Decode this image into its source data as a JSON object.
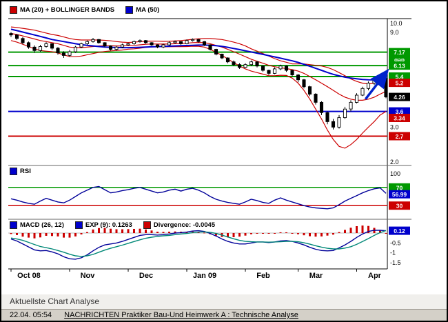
{
  "legends": {
    "main": [
      {
        "label": "MA (20) + BOLLINGER BANDS",
        "color": "#cc0000"
      },
      {
        "label": "MA (50)",
        "color": "#0000cc"
      }
    ],
    "rsi": [
      {
        "label": "RSI",
        "color": "#0000cc"
      }
    ],
    "macd": [
      {
        "label": "MACD (26, 12)",
        "color": "#0000cc"
      },
      {
        "label": "EXP (9): 0.1263",
        "color": "#0000cc"
      },
      {
        "label": "Divergence: -0.0045",
        "color": "#cc0000"
      }
    ]
  },
  "analysis": {
    "title": "Aktuellste Chart Analyse",
    "timestamp": "22.04. 05:54",
    "link": "NACHRICHTEN Praktiker Bau-Und Heimwerk A : Technische Analyse"
  },
  "chart_data": {
    "type": "candlestick",
    "x_axis": {
      "months": [
        {
          "label": "Oct 08",
          "index": 0
        },
        {
          "label": "Nov",
          "index": 10
        },
        {
          "label": "Dec",
          "index": 20
        },
        {
          "label": "Jan 09",
          "index": 30
        },
        {
          "label": "Feb",
          "index": 40
        },
        {
          "label": "Mar",
          "index": 49
        },
        {
          "label": "Apr",
          "index": 59
        }
      ]
    },
    "panels": {
      "price": {
        "scale": "log",
        "ylim": [
          2.0,
          10.35
        ],
        "ticks": [
          {
            "label": "10.0",
            "value": 10.0
          },
          {
            "label": "9.0",
            "value": 9.0
          },
          {
            "label": "3.0",
            "value": 3.0
          },
          {
            "label": "2.0",
            "value": 2.0
          }
        ],
        "levels": [
          {
            "value": 7.17,
            "color": "#009900"
          },
          {
            "value": 6.13,
            "color": "#009900"
          },
          {
            "value": 5.4,
            "color": "#009900"
          },
          {
            "value": 3.6,
            "color": "#0000cc"
          },
          {
            "value": 2.7,
            "color": "#cc0000"
          }
        ],
        "markers": [
          {
            "text": "7.17",
            "value": 7.17,
            "bg": "#009900"
          },
          {
            "text": "gap",
            "value": 6.6,
            "bg": "#009900"
          },
          {
            "text": "6.13",
            "value": 6.13,
            "bg": "#009900"
          },
          {
            "text": "5.4",
            "value": 5.4,
            "bg": "#009900"
          },
          {
            "text": "5.2",
            "value": 5.02,
            "bg": "#cc0000"
          },
          {
            "text": "4.26",
            "value": 4.26,
            "bg": "#000000"
          },
          {
            "text": "3.6",
            "value": 3.6,
            "bg": "#0000cc"
          },
          {
            "text": "3.34",
            "value": 3.34,
            "bg": "#cc0000"
          },
          {
            "text": "2.7",
            "value": 2.7,
            "bg": "#cc0000"
          }
        ],
        "trend_arrow": {
          "from_index": 60.5,
          "from_price": 4.15,
          "to_index": 64.0,
          "to_price": 5.65,
          "color": "#0022cc"
        },
        "candles": [
          [
            8.9,
            9.05,
            8.55,
            8.75
          ],
          [
            8.75,
            8.85,
            8.25,
            8.4
          ],
          [
            8.4,
            8.55,
            7.85,
            8.0
          ],
          [
            8.0,
            8.1,
            7.45,
            7.6
          ],
          [
            7.6,
            7.75,
            7.1,
            7.3
          ],
          [
            7.3,
            7.8,
            7.2,
            7.65
          ],
          [
            7.65,
            8.05,
            7.55,
            7.9
          ],
          [
            7.9,
            7.95,
            7.35,
            7.5
          ],
          [
            7.5,
            7.6,
            6.95,
            7.1
          ],
          [
            7.1,
            7.25,
            6.7,
            6.9
          ],
          [
            6.9,
            7.35,
            6.8,
            7.2
          ],
          [
            7.2,
            7.7,
            7.1,
            7.6
          ],
          [
            7.6,
            8.0,
            7.5,
            7.9
          ],
          [
            7.9,
            8.2,
            7.8,
            8.1
          ],
          [
            8.1,
            8.45,
            8.0,
            8.3
          ],
          [
            8.3,
            8.35,
            7.9,
            8.0
          ],
          [
            8.0,
            8.05,
            7.6,
            7.7
          ],
          [
            7.7,
            7.75,
            7.3,
            7.4
          ],
          [
            7.4,
            7.7,
            7.3,
            7.6
          ],
          [
            7.6,
            7.9,
            7.5,
            7.8
          ],
          [
            7.8,
            8.0,
            7.7,
            7.9
          ],
          [
            7.9,
            8.2,
            7.8,
            8.1
          ],
          [
            8.1,
            8.3,
            8.0,
            8.2
          ],
          [
            8.2,
            8.25,
            7.9,
            8.0
          ],
          [
            8.0,
            8.05,
            7.7,
            7.8
          ],
          [
            7.8,
            7.85,
            7.5,
            7.6
          ],
          [
            7.6,
            7.9,
            7.5,
            7.8
          ],
          [
            7.8,
            8.1,
            7.7,
            8.0
          ],
          [
            8.0,
            8.2,
            7.9,
            8.1
          ],
          [
            8.1,
            8.15,
            7.8,
            7.9
          ],
          [
            7.9,
            8.3,
            7.85,
            8.2
          ],
          [
            8.2,
            8.4,
            8.1,
            8.3
          ],
          [
            8.3,
            8.35,
            8.0,
            8.1
          ],
          [
            8.1,
            8.15,
            7.7,
            7.8
          ],
          [
            7.8,
            7.85,
            7.3,
            7.4
          ],
          [
            7.4,
            7.45,
            6.9,
            7.0
          ],
          [
            7.0,
            7.05,
            6.6,
            6.7
          ],
          [
            6.7,
            6.75,
            6.3,
            6.4
          ],
          [
            6.4,
            6.5,
            6.1,
            6.2
          ],
          [
            6.2,
            6.3,
            5.9,
            6.0
          ],
          [
            6.0,
            6.3,
            5.95,
            6.2
          ],
          [
            6.2,
            6.5,
            6.1,
            6.4
          ],
          [
            6.4,
            6.45,
            6.0,
            6.1
          ],
          [
            6.1,
            6.15,
            5.7,
            5.8
          ],
          [
            5.8,
            5.85,
            5.5,
            5.6
          ],
          [
            5.6,
            6.0,
            5.55,
            5.9
          ],
          [
            5.9,
            6.2,
            5.8,
            6.1
          ],
          [
            6.1,
            6.15,
            5.7,
            5.8
          ],
          [
            5.8,
            5.85,
            5.4,
            5.5
          ],
          [
            5.5,
            5.55,
            5.05,
            5.2
          ],
          [
            5.2,
            5.25,
            4.7,
            4.8
          ],
          [
            4.8,
            4.85,
            4.3,
            4.4
          ],
          [
            4.4,
            4.45,
            3.9,
            4.0
          ],
          [
            4.0,
            4.05,
            3.45,
            3.55
          ],
          [
            3.55,
            3.6,
            3.1,
            3.2
          ],
          [
            3.2,
            3.3,
            2.92,
            3.0
          ],
          [
            3.0,
            3.45,
            2.95,
            3.35
          ],
          [
            3.35,
            3.8,
            3.3,
            3.7
          ],
          [
            3.7,
            4.1,
            3.6,
            4.0
          ],
          [
            4.0,
            4.45,
            3.95,
            4.35
          ],
          [
            4.35,
            4.8,
            4.3,
            4.7
          ],
          [
            4.7,
            5.1,
            4.6,
            5.0
          ],
          [
            5.0,
            5.3,
            4.9,
            5.2
          ],
          [
            5.2,
            5.45,
            5.1,
            5.3
          ],
          [
            5.3,
            5.35,
            4.2,
            4.26
          ]
        ],
        "ma20": [
          8.9,
          8.8,
          8.65,
          8.5,
          8.35,
          8.2,
          8.1,
          8.0,
          7.9,
          7.75,
          7.6,
          7.55,
          7.55,
          7.6,
          7.65,
          7.7,
          7.72,
          7.72,
          7.7,
          7.7,
          7.72,
          7.75,
          7.8,
          7.85,
          7.88,
          7.88,
          7.87,
          7.88,
          7.9,
          7.92,
          7.95,
          8.0,
          8.02,
          8.0,
          7.9,
          7.75,
          7.6,
          7.4,
          7.2,
          7.0,
          6.8,
          6.6,
          6.45,
          6.3,
          6.15,
          6.05,
          5.98,
          5.92,
          5.85,
          5.75,
          5.6,
          5.4,
          5.2,
          5.0,
          4.8,
          4.6,
          4.4,
          4.25,
          4.15,
          4.1,
          4.1,
          4.15,
          4.25,
          4.4,
          4.55
        ],
        "ma50": [
          9.35,
          9.2,
          9.05,
          8.9,
          8.75,
          8.6,
          8.45,
          8.3,
          8.2,
          8.1,
          8.0,
          7.9,
          7.82,
          7.75,
          7.7,
          7.65,
          7.6,
          7.58,
          7.56,
          7.55,
          7.55,
          7.56,
          7.58,
          7.6,
          7.62,
          7.64,
          7.66,
          7.68,
          7.7,
          7.72,
          7.74,
          7.76,
          7.78,
          7.78,
          7.76,
          7.72,
          7.66,
          7.58,
          7.48,
          7.38,
          7.28,
          7.18,
          7.08,
          6.98,
          6.88,
          6.78,
          6.68,
          6.58,
          6.48,
          6.36,
          6.22,
          6.08,
          5.94,
          5.8,
          5.66,
          5.54,
          5.44,
          5.36,
          5.3,
          5.26,
          5.22,
          5.2,
          5.19,
          5.19,
          5.2
        ],
        "bb_upper": [
          9.6,
          9.55,
          9.45,
          9.35,
          9.25,
          9.1,
          8.95,
          8.8,
          8.7,
          8.55,
          8.4,
          8.3,
          8.25,
          8.25,
          8.25,
          8.25,
          8.22,
          8.17,
          8.1,
          8.05,
          8.02,
          8.05,
          8.1,
          8.13,
          8.15,
          8.14,
          8.12,
          8.13,
          8.16,
          8.2,
          8.25,
          8.32,
          8.37,
          8.4,
          8.4,
          8.35,
          8.3,
          8.18,
          8.05,
          7.9,
          7.7,
          7.45,
          7.25,
          7.05,
          6.85,
          6.65,
          6.48,
          6.37,
          6.25,
          6.25,
          6.25,
          6.2,
          6.15,
          6.1,
          6.0,
          5.85,
          5.65,
          5.45,
          5.25,
          5.1,
          5.0,
          4.95,
          5.0,
          5.1,
          5.25
        ],
        "bb_lower": [
          8.2,
          8.05,
          7.85,
          7.65,
          7.45,
          7.3,
          7.25,
          7.2,
          7.1,
          6.95,
          6.8,
          6.8,
          6.85,
          6.95,
          7.05,
          7.15,
          7.22,
          7.27,
          7.3,
          7.35,
          7.42,
          7.45,
          7.5,
          7.57,
          7.61,
          7.62,
          7.62,
          7.63,
          7.64,
          7.64,
          7.65,
          7.68,
          7.67,
          7.6,
          7.4,
          7.15,
          6.9,
          6.62,
          6.35,
          6.1,
          5.9,
          5.75,
          5.65,
          5.55,
          5.45,
          5.45,
          5.48,
          5.47,
          5.3,
          5.0,
          4.6,
          4.15,
          3.7,
          3.3,
          2.9,
          2.6,
          2.4,
          2.35,
          2.45,
          2.6,
          2.8,
          3.0,
          3.2,
          3.45,
          3.6
        ]
      },
      "rsi": {
        "ylim": [
          0,
          100
        ],
        "ticks": [
          {
            "label": "100",
            "value": 100
          }
        ],
        "levels": [
          {
            "value": 70,
            "color": "#009900"
          },
          {
            "value": 30,
            "color": "#cc0000"
          }
        ],
        "markers": [
          {
            "text": "70",
            "value": 70,
            "bg": "#009900"
          },
          {
            "text": "56.99",
            "value": 55,
            "bg": "#0000cc"
          },
          {
            "text": "30",
            "value": 30,
            "bg": "#cc0000"
          }
        ],
        "values": [
          45,
          42,
          38,
          35,
          33,
          40,
          46,
          42,
          38,
          36,
          42,
          50,
          58,
          64,
          70,
          72,
          65,
          58,
          60,
          63,
          65,
          68,
          70,
          66,
          62,
          58,
          60,
          64,
          66,
          62,
          66,
          68,
          64,
          58,
          50,
          44,
          40,
          37,
          35,
          33,
          38,
          44,
          41,
          37,
          35,
          42,
          47,
          42,
          38,
          34,
          30,
          27,
          25,
          24,
          23,
          25,
          32,
          40,
          46,
          52,
          58,
          63,
          67,
          69,
          56.99
        ]
      },
      "macd": {
        "ticks": [
          {
            "label": "-0.5",
            "value": -0.5
          },
          {
            "label": "-1",
            "value": -1
          },
          {
            "label": "-1.5",
            "value": -1.5
          }
        ],
        "markers": [
          {
            "text": "0.12",
            "value": 0.12,
            "bg": "#0000cc"
          }
        ],
        "macd": [
          -0.3,
          -0.4,
          -0.55,
          -0.7,
          -0.85,
          -0.9,
          -0.88,
          -0.95,
          -1.05,
          -1.2,
          -1.3,
          -1.32,
          -1.25,
          -1.1,
          -0.9,
          -0.72,
          -0.6,
          -0.55,
          -0.5,
          -0.42,
          -0.32,
          -0.22,
          -0.12,
          -0.08,
          -0.08,
          -0.1,
          -0.08,
          -0.05,
          0.0,
          0.02,
          0.05,
          0.1,
          0.12,
          0.08,
          -0.02,
          -0.15,
          -0.3,
          -0.42,
          -0.5,
          -0.55,
          -0.55,
          -0.5,
          -0.45,
          -0.45,
          -0.48,
          -0.45,
          -0.4,
          -0.38,
          -0.42,
          -0.5,
          -0.6,
          -0.72,
          -0.82,
          -0.88,
          -0.9,
          -0.88,
          -0.75,
          -0.6,
          -0.42,
          -0.22,
          -0.05,
          0.08,
          0.14,
          0.14,
          0.12
        ],
        "signal": [
          -0.25,
          -0.3,
          -0.37,
          -0.47,
          -0.58,
          -0.68,
          -0.74,
          -0.8,
          -0.88,
          -0.97,
          -1.07,
          -1.15,
          -1.18,
          -1.15,
          -1.08,
          -0.97,
          -0.86,
          -0.77,
          -0.69,
          -0.61,
          -0.52,
          -0.43,
          -0.34,
          -0.26,
          -0.21,
          -0.17,
          -0.14,
          -0.12,
          -0.08,
          -0.05,
          -0.02,
          0.02,
          0.05,
          0.06,
          0.04,
          -0.02,
          -0.1,
          -0.2,
          -0.29,
          -0.37,
          -0.42,
          -0.44,
          -0.45,
          -0.45,
          -0.46,
          -0.45,
          -0.44,
          -0.42,
          -0.42,
          -0.44,
          -0.49,
          -0.56,
          -0.64,
          -0.71,
          -0.77,
          -0.8,
          -0.8,
          -0.76,
          -0.69,
          -0.57,
          -0.43,
          -0.28,
          -0.12,
          0.02,
          0.126
        ]
      }
    }
  }
}
